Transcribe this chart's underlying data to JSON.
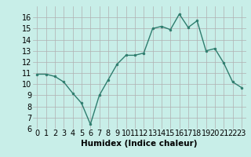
{
  "x": [
    0,
    1,
    2,
    3,
    4,
    5,
    6,
    7,
    8,
    9,
    10,
    11,
    12,
    13,
    14,
    15,
    16,
    17,
    18,
    19,
    20,
    21,
    22,
    23
  ],
  "y": [
    10.9,
    10.9,
    10.7,
    10.2,
    9.2,
    8.3,
    6.4,
    9.0,
    10.4,
    11.8,
    12.6,
    12.6,
    12.8,
    15.0,
    15.2,
    14.9,
    16.3,
    15.1,
    15.7,
    13.0,
    13.2,
    11.9,
    10.2,
    9.7
  ],
  "line_color": "#2e7d6e",
  "marker": "o",
  "marker_size": 2.0,
  "line_width": 1.0,
  "bg_color": "#c8eee8",
  "grid_color": "#b0b0b0",
  "xlabel": "Humidex (Indice chaleur)",
  "xlabel_fontsize": 7.5,
  "tick_fontsize": 7,
  "xlim": [
    -0.5,
    23.5
  ],
  "ylim": [
    6,
    17
  ],
  "yticks": [
    6,
    7,
    8,
    9,
    10,
    11,
    12,
    13,
    14,
    15,
    16
  ],
  "xticks": [
    0,
    1,
    2,
    3,
    4,
    5,
    6,
    7,
    8,
    9,
    10,
    11,
    12,
    13,
    14,
    15,
    16,
    17,
    18,
    19,
    20,
    21,
    22,
    23
  ]
}
